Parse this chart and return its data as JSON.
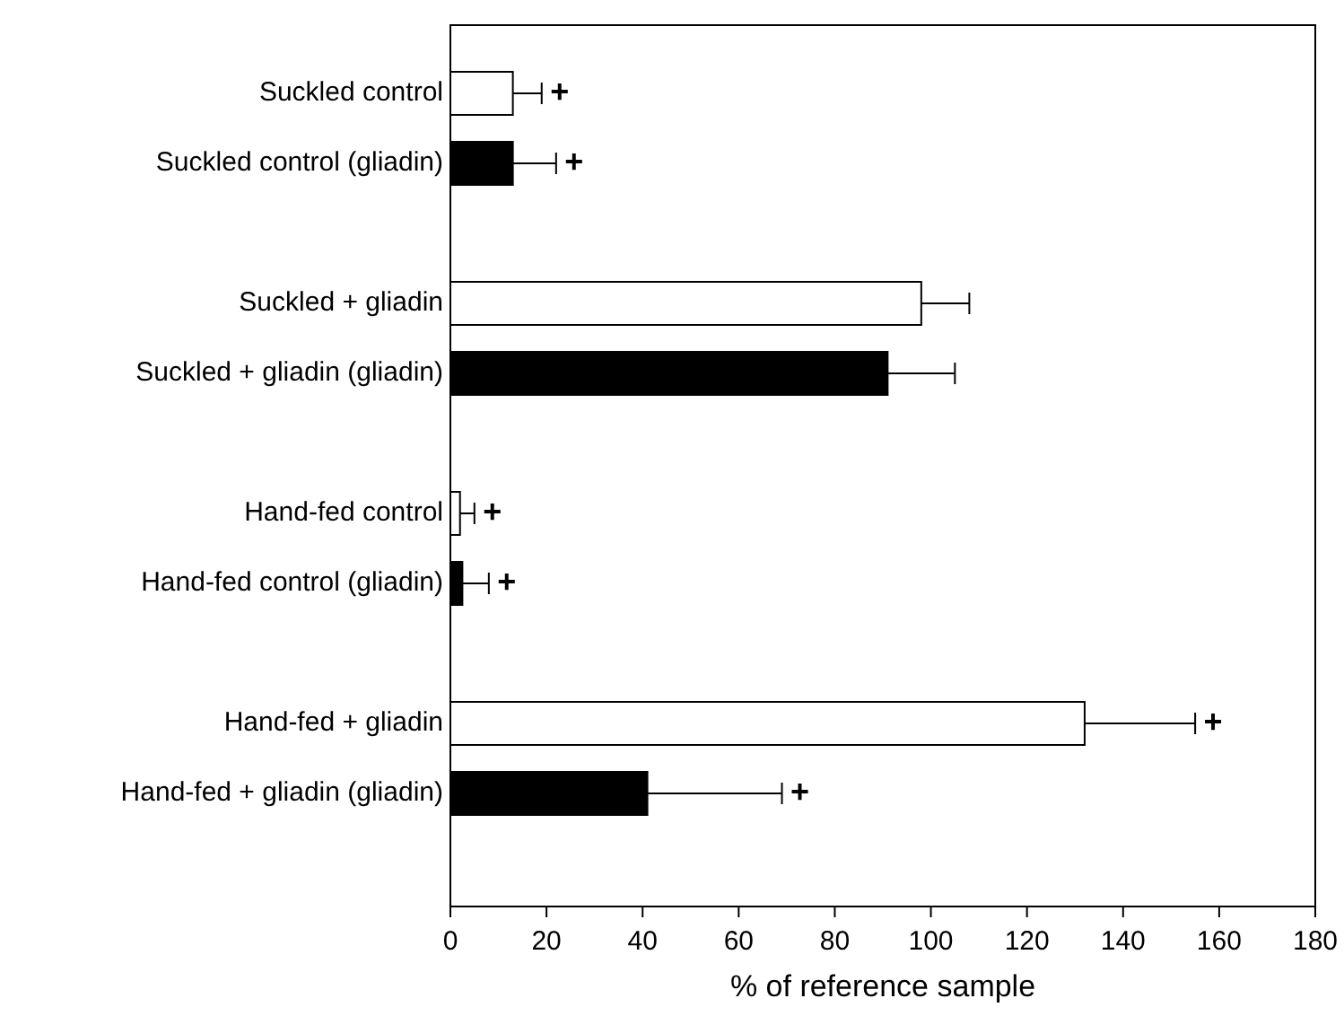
{
  "chart_data": {
    "type": "bar",
    "orientation": "horizontal",
    "xlabel": "% of reference sample",
    "categories": [
      "Suckled control",
      "Suckled control (gliadin)",
      "Suckled + gliadin",
      "Suckled + gliadin (gliadin)",
      "Hand-fed control",
      "Hand-fed control (gliadin)",
      "Hand-fed + gliadin",
      "Hand-fed + gliadin (gliadin)"
    ],
    "values": [
      13,
      13,
      98,
      91,
      2,
      2.5,
      132,
      41
    ],
    "colors": [
      "#ffffff",
      "#000000",
      "#ffffff",
      "#000000",
      "#ffffff",
      "#000000",
      "#ffffff",
      "#000000"
    ],
    "errors": [
      [
        13,
        19
      ],
      [
        13,
        22
      ],
      [
        98,
        108
      ],
      [
        91,
        105
      ],
      [
        2,
        5
      ],
      [
        2.5,
        8
      ],
      [
        132,
        155
      ],
      [
        41,
        69
      ]
    ],
    "xlim": [
      0,
      180
    ],
    "xticks": [
      0,
      20,
      40,
      60,
      80,
      100,
      120,
      140,
      160,
      180
    ],
    "grid": false,
    "annotations": [
      {
        "text": "+",
        "x": 19,
        "y": "Suckled control"
      },
      {
        "text": "+",
        "x": 22,
        "y": "Suckled control (gliadin)"
      },
      {
        "text": "+",
        "x": 5,
        "y": "Hand-fed control"
      },
      {
        "text": "+",
        "x": 8,
        "y": "Hand-fed control (gliadin)"
      },
      {
        "text": "+",
        "x": 155,
        "y": "Hand-fed + gliadin"
      },
      {
        "text": "+",
        "x": 69,
        "y": "Hand-fed + gliadin (gliadin)"
      }
    ]
  }
}
